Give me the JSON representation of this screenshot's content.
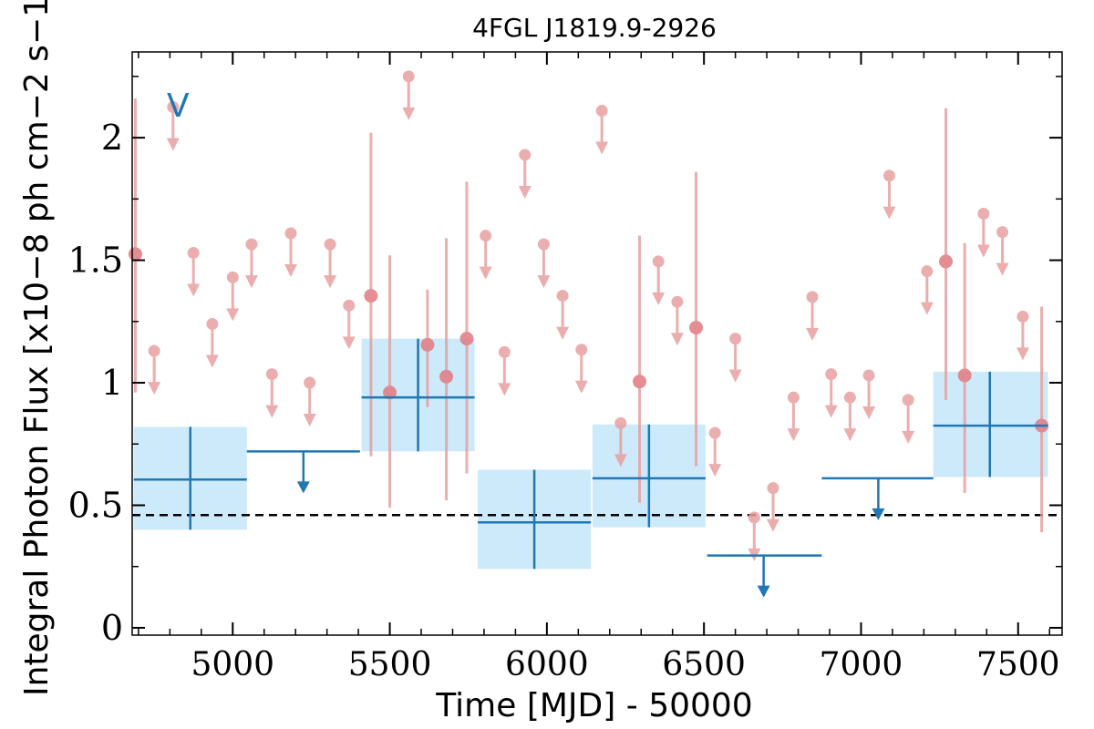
{
  "chart_data": {
    "type": "scatter",
    "title": "4FGL J1819.9-2926",
    "xlabel": "Time [MJD] - 50000",
    "ylabel": "Integral Photon Flux [x10−8 ph cm−2 s−1]",
    "xlim": [
      4680,
      7640
    ],
    "ylim": [
      -0.03,
      2.35
    ],
    "x_ticks": [
      5000,
      5500,
      6000,
      6500,
      7000,
      7500
    ],
    "x_tick_labels": [
      "5000",
      "5500",
      "6000",
      "6500",
      "7000",
      "7500"
    ],
    "y_ticks": [
      0,
      0.5,
      1,
      1.5,
      2
    ],
    "y_tick_labels": [
      "0",
      "0.5",
      "1",
      "1.5",
      "2"
    ],
    "legend_label": "V",
    "legend_position": "top-left",
    "reference_line": {
      "y": 0.46,
      "style": "dashed"
    },
    "colors": {
      "long_bins": "#1f77b4",
      "long_band": "#cdeafa",
      "short_bins": "#e8a0a0"
    },
    "series": [
      {
        "binning": "long",
        "detections": [
          {
            "x": 4865,
            "x0": 4685,
            "x1": 5045,
            "y": 0.605,
            "ylo": 0.4,
            "yhi": 0.82
          },
          {
            "x": 5590,
            "x0": 5410,
            "x1": 5770,
            "y": 0.94,
            "ylo": 0.72,
            "yhi": 1.18
          },
          {
            "x": 5960,
            "x0": 5780,
            "x1": 6140,
            "y": 0.43,
            "ylo": 0.24,
            "yhi": 0.645
          },
          {
            "x": 6325,
            "x0": 6145,
            "x1": 6505,
            "y": 0.61,
            "ylo": 0.41,
            "yhi": 0.83
          },
          {
            "x": 7410,
            "x0": 7230,
            "x1": 7595,
            "y": 0.825,
            "ylo": 0.615,
            "yhi": 1.045
          }
        ],
        "upper_limits": [
          {
            "x": 5225,
            "x0": 5045,
            "x1": 5405,
            "y": 0.72
          },
          {
            "x": 6690,
            "x0": 6510,
            "x1": 6875,
            "y": 0.295
          },
          {
            "x": 7055,
            "x0": 6875,
            "x1": 7230,
            "y": 0.61
          }
        ]
      },
      {
        "binning": "short",
        "detections": [
          {
            "x": 4690,
            "y": 1.525,
            "ylo": 0.96,
            "yhi": 2.16
          },
          {
            "x": 5440,
            "y": 1.355,
            "ylo": 0.7,
            "yhi": 2.02
          },
          {
            "x": 5500,
            "y": 0.96,
            "ylo": 0.49,
            "yhi": 1.52
          },
          {
            "x": 5620,
            "y": 1.155,
            "ylo": 0.9,
            "yhi": 1.38
          },
          {
            "x": 5680,
            "y": 1.025,
            "ylo": 0.52,
            "yhi": 1.59
          },
          {
            "x": 5745,
            "y": 1.18,
            "ylo": 0.63,
            "yhi": 1.82
          },
          {
            "x": 6295,
            "y": 1.005,
            "ylo": 0.51,
            "yhi": 1.6
          },
          {
            "x": 6475,
            "y": 1.225,
            "ylo": 0.66,
            "yhi": 1.86
          },
          {
            "x": 7270,
            "y": 1.495,
            "ylo": 0.93,
            "yhi": 2.12
          },
          {
            "x": 7330,
            "y": 1.03,
            "ylo": 0.55,
            "yhi": 1.57
          },
          {
            "x": 7575,
            "y": 0.825,
            "ylo": 0.39,
            "yhi": 1.31
          }
        ],
        "upper_limits": [
          {
            "x": 4750,
            "y": 1.13
          },
          {
            "x": 4810,
            "y": 2.125
          },
          {
            "x": 4875,
            "y": 1.53
          },
          {
            "x": 4935,
            "y": 1.24
          },
          {
            "x": 5000,
            "y": 1.43
          },
          {
            "x": 5060,
            "y": 1.565
          },
          {
            "x": 5125,
            "y": 1.035
          },
          {
            "x": 5185,
            "y": 1.61
          },
          {
            "x": 5245,
            "y": 1.0
          },
          {
            "x": 5310,
            "y": 1.565
          },
          {
            "x": 5370,
            "y": 1.315
          },
          {
            "x": 5560,
            "y": 2.25
          },
          {
            "x": 5805,
            "y": 1.6
          },
          {
            "x": 5865,
            "y": 1.125
          },
          {
            "x": 5930,
            "y": 1.93
          },
          {
            "x": 5990,
            "y": 1.565
          },
          {
            "x": 6050,
            "y": 1.355
          },
          {
            "x": 6110,
            "y": 1.135
          },
          {
            "x": 6175,
            "y": 2.11
          },
          {
            "x": 6235,
            "y": 0.835
          },
          {
            "x": 6355,
            "y": 1.495
          },
          {
            "x": 6415,
            "y": 1.33
          },
          {
            "x": 6535,
            "y": 0.795
          },
          {
            "x": 6600,
            "y": 1.18
          },
          {
            "x": 6660,
            "y": 0.45
          },
          {
            "x": 6720,
            "y": 0.57
          },
          {
            "x": 6785,
            "y": 0.94
          },
          {
            "x": 6845,
            "y": 1.35
          },
          {
            "x": 6905,
            "y": 1.035
          },
          {
            "x": 6965,
            "y": 0.94
          },
          {
            "x": 7025,
            "y": 1.03
          },
          {
            "x": 7090,
            "y": 1.845
          },
          {
            "x": 7150,
            "y": 0.93
          },
          {
            "x": 7210,
            "y": 1.455
          },
          {
            "x": 7390,
            "y": 1.69
          },
          {
            "x": 7450,
            "y": 1.615
          },
          {
            "x": 7515,
            "y": 1.27
          }
        ]
      }
    ]
  }
}
